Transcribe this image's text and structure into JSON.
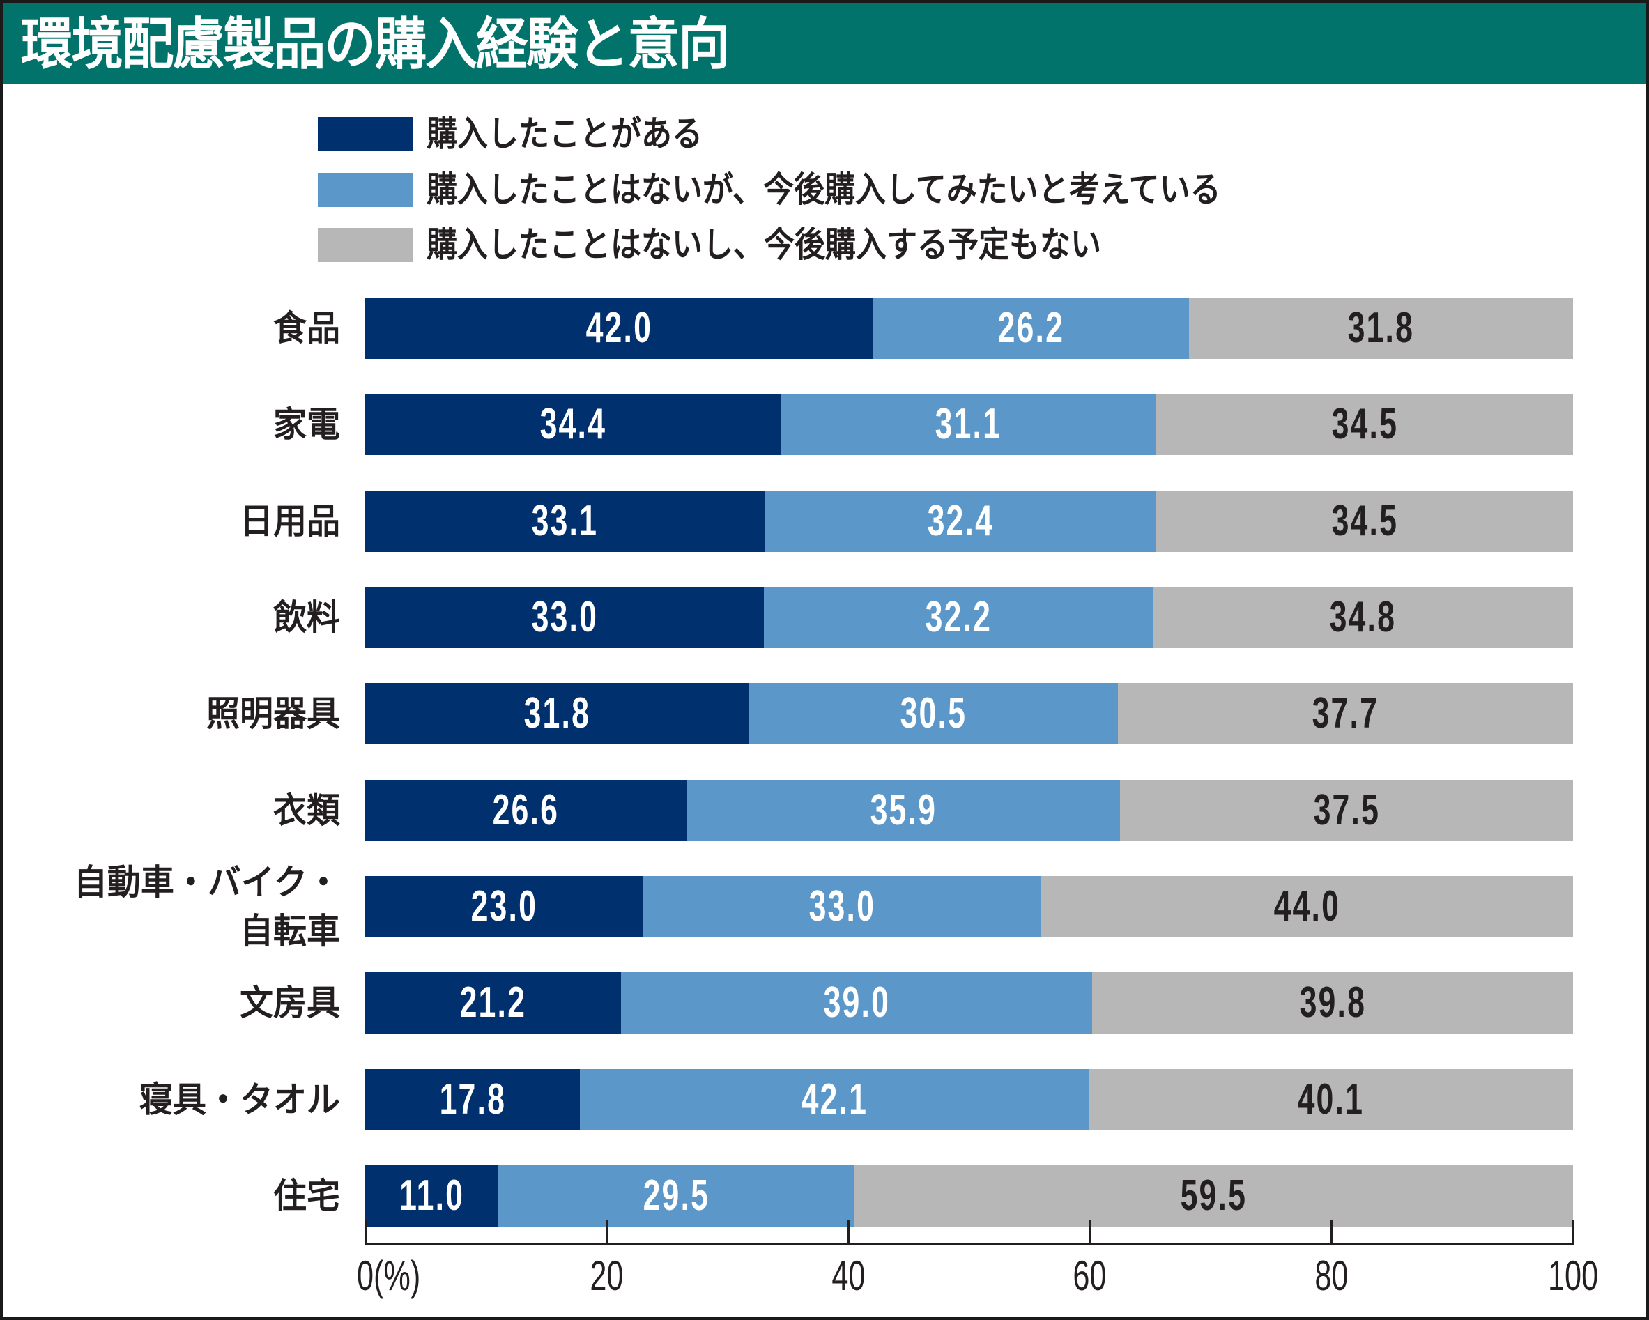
{
  "title": "環境配慮製品の購入経験と意向",
  "colors": {
    "header": "#02736A",
    "purchased": "#00306E",
    "want_to_buy": "#5B97C9",
    "no_plan": "#B7B7B8",
    "label_light": "#FFFFFF",
    "label_dark": "#231F20"
  },
  "chart_data": {
    "type": "bar",
    "orientation": "horizontal",
    "stacked": true,
    "title": "環境配慮製品の購入経験と意向",
    "xlabel": "",
    "ylabel": "",
    "unit_label": "0(%)",
    "xlim": [
      0,
      100
    ],
    "xticks": [
      0,
      20,
      40,
      60,
      80,
      100
    ],
    "xtick_labels": [
      "0(%)",
      "20",
      "40",
      "60",
      "80",
      "100"
    ],
    "grid": false,
    "legend_position": "top",
    "categories": [
      "食品",
      "家電",
      "日用品",
      "飲料",
      "照明器具",
      "衣類",
      "自動車・バイク・\n自転車",
      "文房具",
      "寝具・タオル",
      "住宅"
    ],
    "series": [
      {
        "name": "購入したことがある",
        "color": "#00306E",
        "values": [
          42.0,
          34.4,
          33.1,
          33.0,
          31.8,
          26.6,
          23.0,
          21.2,
          17.8,
          11.0
        ],
        "labels": [
          "42.0",
          "34.4",
          "33.1",
          "33.0",
          "31.8",
          "26.6",
          "23.0",
          "21.2",
          "17.8",
          "11.0"
        ]
      },
      {
        "name": "購入したことはないが、今後購入してみたいと考えている",
        "color": "#5B97C9",
        "values": [
          26.2,
          31.1,
          32.4,
          32.2,
          30.5,
          35.9,
          33.0,
          39.0,
          42.1,
          29.5
        ],
        "labels": [
          "26.2",
          "31.1",
          "32.4",
          "32.2",
          "30.5",
          "35.9",
          "33.0",
          "39.0",
          "42.1",
          "29.5"
        ]
      },
      {
        "name": "購入したことはないし、今後購入する予定もない",
        "color": "#B7B7B8",
        "values": [
          31.8,
          34.5,
          34.5,
          34.8,
          37.7,
          37.5,
          44.0,
          39.8,
          40.1,
          59.5
        ],
        "labels": [
          "31.8",
          "34.5",
          "34.5",
          "34.8",
          "37.7",
          "37.5",
          "44.0",
          "39.8",
          "40.1",
          "59.5"
        ]
      }
    ]
  }
}
